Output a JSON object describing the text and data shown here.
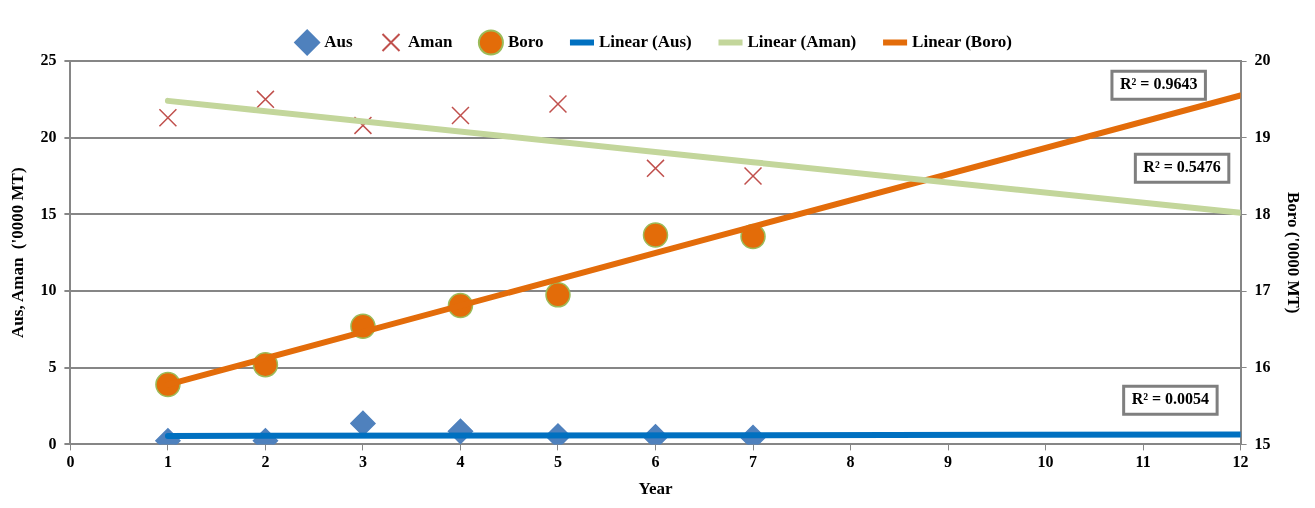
{
  "chart_data": {
    "type": "scatter",
    "xlabel": "Year",
    "ylabel": "Aus, Aman  ('0000 MT)",
    "y2label": "Boro ('0000 MT)",
    "x": [
      1,
      2,
      3,
      4,
      5,
      6,
      7
    ],
    "series": [
      {
        "name": "Aus",
        "type": "scatter",
        "marker": "diamond",
        "color": "#4f81bd",
        "values": [
          0.24,
          0.24,
          1.37,
          0.85,
          0.55,
          0.5,
          0.45
        ]
      },
      {
        "name": "Aman",
        "type": "scatter",
        "marker": "cross",
        "color": "#c0504d",
        "values": [
          21.3,
          22.5,
          20.8,
          21.45,
          22.2,
          18.0,
          17.5
        ]
      },
      {
        "name": "Boro",
        "type": "scatter",
        "marker": "circle",
        "color": "#e36c09",
        "axis": "y2",
        "values": [
          15.78,
          16.04,
          16.54,
          16.81,
          16.95,
          17.73,
          17.71
        ]
      },
      {
        "name": "Linear (Aus)",
        "type": "line",
        "marker": "none",
        "color": "#0070c0",
        "x": [
          1,
          7,
          12
        ],
        "values": [
          0.55,
          0.6,
          0.65
        ]
      },
      {
        "name": "Linear (Aman)",
        "type": "line",
        "marker": "none",
        "color": "#c3d69b",
        "x": [
          1,
          7,
          12
        ],
        "values": [
          22.4,
          18.4,
          15.1
        ]
      },
      {
        "name": "Linear (Boro)",
        "type": "line",
        "marker": "none",
        "color": "#e36c0a",
        "axis": "y2",
        "x": [
          1,
          7,
          12
        ],
        "values": [
          15.78,
          17.84,
          19.55
        ]
      }
    ],
    "xlim": [
      0,
      12
    ],
    "xticks": [
      0,
      1,
      2,
      3,
      4,
      5,
      6,
      7,
      8,
      9,
      10,
      11,
      12
    ],
    "ylim": [
      0,
      25
    ],
    "yticks": [
      0,
      5,
      10,
      15,
      20,
      25
    ],
    "y2lim": [
      15,
      20
    ],
    "y2ticks": [
      15,
      16,
      17,
      18,
      19,
      20
    ],
    "annotations": [
      "R² = 0.9643",
      "R² = 0.5476",
      "R² = 0.0054"
    ],
    "grid": "y",
    "legend": "top"
  }
}
